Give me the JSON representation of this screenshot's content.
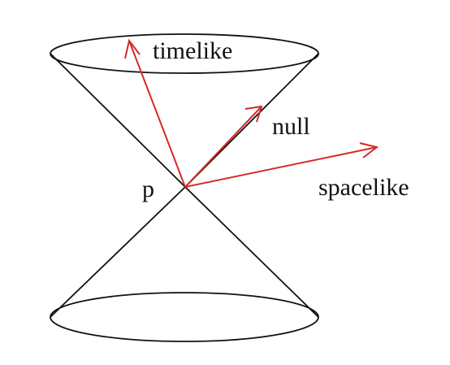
{
  "diagram": {
    "event_label": "p",
    "vectors": [
      {
        "name": "timelike",
        "label": "timelike"
      },
      {
        "name": "null",
        "label": "null"
      },
      {
        "name": "spacelike",
        "label": "spacelike"
      }
    ]
  },
  "colors": {
    "cone": "#111111",
    "vectors": "#d42a2a",
    "text": "#111111",
    "background": "#ffffff"
  }
}
